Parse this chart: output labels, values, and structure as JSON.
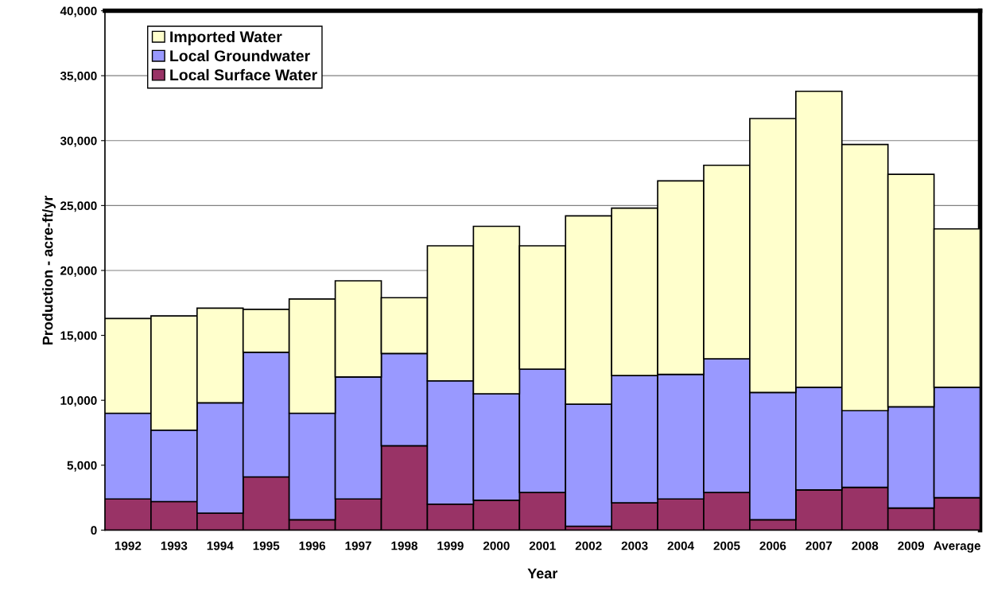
{
  "chart_data": {
    "type": "bar",
    "stacked": true,
    "xlabel": "Year",
    "ylabel": "Production - acre-ft/yr",
    "categories": [
      "1992",
      "1993",
      "1994",
      "1995",
      "1996",
      "1997",
      "1998",
      "1999",
      "2000",
      "2001",
      "2002",
      "2003",
      "2004",
      "2005",
      "2006",
      "2007",
      "2008",
      "2009",
      "Average"
    ],
    "series": [
      {
        "name": "Local Surface Water",
        "color": "#993366",
        "values": [
          2400,
          2200,
          1300,
          4100,
          800,
          2400,
          6500,
          2000,
          2300,
          2900,
          300,
          2100,
          2400,
          2900,
          800,
          3100,
          3300,
          1700,
          2500
        ]
      },
      {
        "name": "Local Groundwater",
        "color": "#9999ff",
        "values": [
          6600,
          5500,
          8500,
          9600,
          8200,
          9400,
          7100,
          9500,
          8200,
          9500,
          9400,
          9800,
          9600,
          10300,
          9800,
          7900,
          5900,
          7800,
          8500
        ]
      },
      {
        "name": "Imported Water",
        "color": "#ffffcc",
        "values": [
          7300,
          8800,
          7300,
          3300,
          8800,
          7400,
          4300,
          10400,
          12900,
          9500,
          14500,
          12900,
          14900,
          14900,
          21100,
          22800,
          20500,
          17900,
          12200
        ]
      }
    ],
    "ylim": [
      0,
      40000
    ],
    "yticks": [
      {
        "value": 0,
        "label": "0"
      },
      {
        "value": 5000,
        "label": "5,000"
      },
      {
        "value": 10000,
        "label": "10,000"
      },
      {
        "value": 15000,
        "label": "15,000"
      },
      {
        "value": 20000,
        "label": "20,000"
      },
      {
        "value": 25000,
        "label": "25,000"
      },
      {
        "value": 30000,
        "label": "30,000"
      },
      {
        "value": 35000,
        "label": "35,000"
      },
      {
        "value": 40000,
        "label": "40,000"
      }
    ],
    "grid": "y",
    "legend": "top left"
  }
}
